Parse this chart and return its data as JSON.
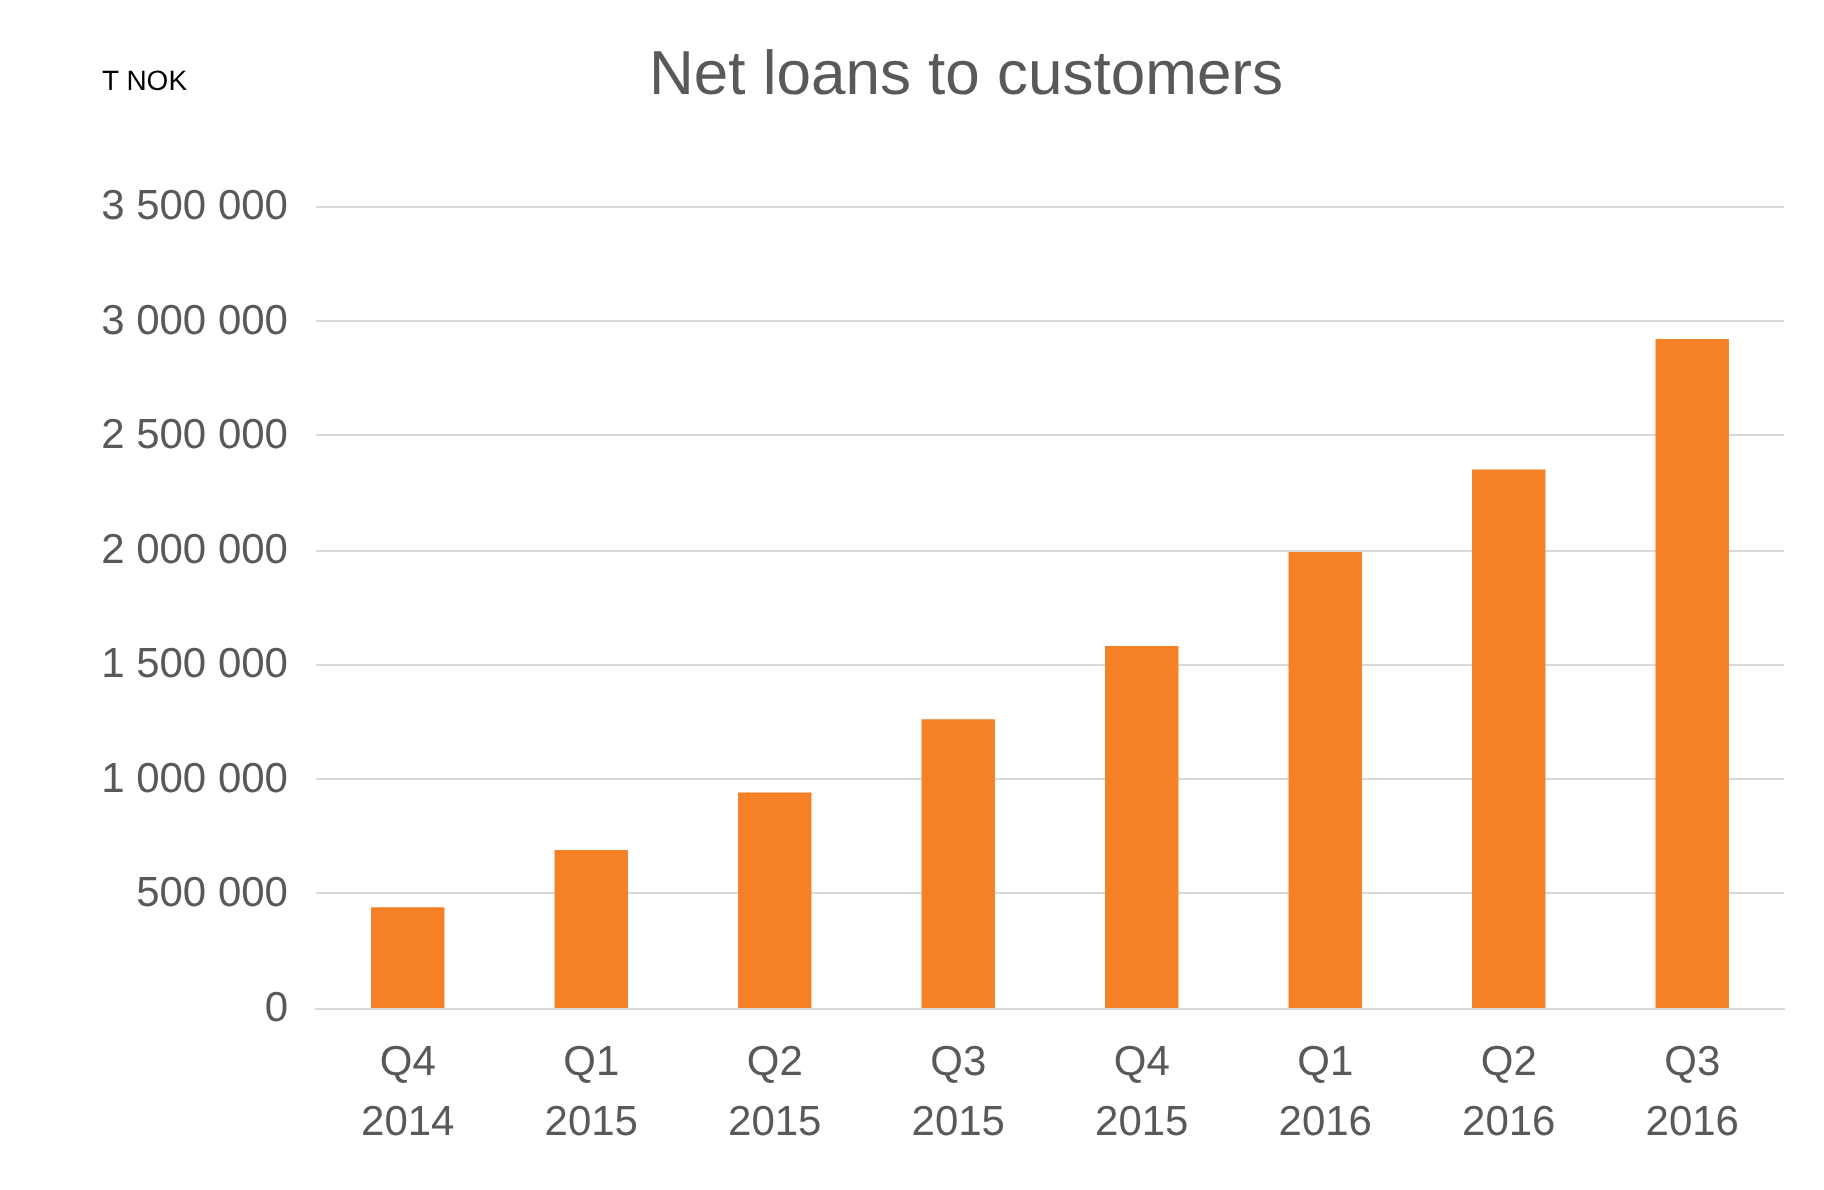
{
  "chart_data": {
    "type": "bar",
    "title": "Net loans to customers",
    "ylabel": "T NOK",
    "categories": [
      "Q4\n2014",
      "Q1\n2015",
      "Q2\n2015",
      "Q3\n2015",
      "Q4\n2015",
      "Q1\n2016",
      "Q2\n2016",
      "Q3\n2016"
    ],
    "values": [
      440000,
      690000,
      940000,
      1260000,
      1580000,
      1990000,
      2350000,
      2920000
    ],
    "color": "#f58025",
    "ylim": [
      0,
      3500000
    ],
    "yticks": [
      {
        "value": 0,
        "label": "0"
      },
      {
        "value": 500000,
        "label": "500 000"
      },
      {
        "value": 1000000,
        "label": "1 000 000"
      },
      {
        "value": 1500000,
        "label": "1 500 000"
      },
      {
        "value": 2000000,
        "label": "2 000 000"
      },
      {
        "value": 2500000,
        "label": "2 500 000"
      },
      {
        "value": 3000000,
        "label": "3 000 000"
      },
      {
        "value": 3500000,
        "label": "3 500 000"
      }
    ],
    "grid": true
  }
}
